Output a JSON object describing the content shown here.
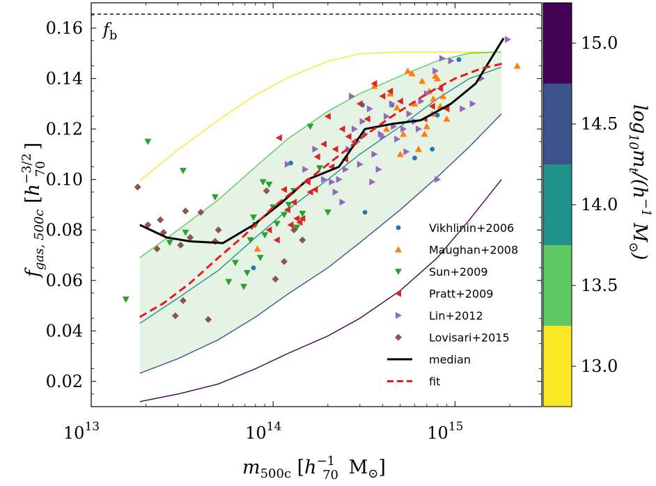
{
  "chart_data": {
    "type": "scatter",
    "x_scale": "log",
    "xlim": [
      10000000000000.0,
      3000000000000000.0
    ],
    "ylim": [
      0.01,
      0.17
    ],
    "x_ticks": [
      {
        "value": 10000000000000.0,
        "base": "10",
        "exp": "13"
      },
      {
        "value": 100000000000000.0,
        "base": "10",
        "exp": "14"
      },
      {
        "value": 1000000000000000.0,
        "base": "10",
        "exp": "15"
      }
    ],
    "y_ticks": [
      "0.02",
      "0.04",
      "0.06",
      "0.08",
      "0.10",
      "0.12",
      "0.14",
      "0.16"
    ],
    "xlabel": "m500c [h70−1 M⊙]",
    "ylabel": "fgas, 500c [h70−3/2]",
    "baryon_fraction": {
      "value": 0.1655,
      "label": "fb"
    },
    "colorbar": {
      "label": "log10 mt/(h−1 M⊙)",
      "ticks": [
        "13.0",
        "13.5",
        "14.0",
        "14.5",
        "15.0"
      ],
      "range": [
        12.75,
        15.25
      ],
      "bands": [
        {
          "from": 12.75,
          "to": 13.25,
          "color": "#fde725"
        },
        {
          "from": 13.25,
          "to": 13.75,
          "color": "#5ec962"
        },
        {
          "from": 13.75,
          "to": 14.25,
          "color": "#21918c"
        },
        {
          "from": 14.25,
          "to": 14.75,
          "color": "#3b528b"
        },
        {
          "from": 14.75,
          "to": 15.25,
          "color": "#440154"
        }
      ]
    },
    "model_curves": [
      {
        "mt": "13.0",
        "color": "#fde725",
        "x": [
          18500000000000.0,
          30000000000000.0,
          50000000000000.0,
          80000000000000.0,
          120000000000000.0,
          200000000000000.0,
          300000000000000.0,
          500000000000000.0,
          800000000000000.0,
          1200000000000000.0,
          1800000000000000.0
        ],
        "y": [
          0.0995,
          0.1118,
          0.1235,
          0.1335,
          0.1402,
          0.1468,
          0.1498,
          0.1505,
          0.1505,
          0.1505,
          0.1505
        ]
      },
      {
        "mt": "13.5",
        "color": "#5ec962",
        "x": [
          18500000000000.0,
          30000000000000.0,
          50000000000000.0,
          80000000000000.0,
          120000000000000.0,
          200000000000000.0,
          300000000000000.0,
          500000000000000.0,
          800000000000000.0,
          1200000000000000.0,
          1800000000000000.0
        ],
        "y": [
          0.069,
          0.08,
          0.092,
          0.105,
          0.116,
          0.127,
          0.134,
          0.141,
          0.147,
          0.15,
          0.1505
        ]
      },
      {
        "mt": "14.0",
        "color": "#21918c",
        "x": [
          18500000000000.0,
          30000000000000.0,
          50000000000000.0,
          80000000000000.0,
          120000000000000.0,
          200000000000000.0,
          300000000000000.0,
          500000000000000.0,
          800000000000000.0,
          1200000000000000.0,
          1800000000000000.0
        ],
        "y": [
          0.043,
          0.053,
          0.064,
          0.077,
          0.088,
          0.1,
          0.11,
          0.121,
          0.132,
          0.14,
          0.1445
        ]
      },
      {
        "mt": "14.5",
        "color": "#3b528b",
        "x": [
          18500000000000.0,
          30000000000000.0,
          50000000000000.0,
          80000000000000.0,
          120000000000000.0,
          200000000000000.0,
          300000000000000.0,
          500000000000000.0,
          800000000000000.0,
          1200000000000000.0,
          1800000000000000.0
        ],
        "y": [
          0.0232,
          0.029,
          0.0365,
          0.0455,
          0.0545,
          0.065,
          0.075,
          0.088,
          0.101,
          0.113,
          0.126
        ]
      },
      {
        "mt": "15.0",
        "color": "#440154",
        "x": [
          18500000000000.0,
          30000000000000.0,
          50000000000000.0,
          80000000000000.0,
          120000000000000.0,
          200000000000000.0,
          300000000000000.0,
          500000000000000.0,
          800000000000000.0,
          1200000000000000.0,
          1800000000000000.0
        ],
        "y": [
          0.012,
          0.015,
          0.019,
          0.025,
          0.031,
          0.038,
          0.045,
          0.056,
          0.069,
          0.084,
          0.1
        ]
      }
    ],
    "shaded_band": {
      "between": [
        "13.5",
        "14.5"
      ],
      "color": "#d7ecd7",
      "opacity": 0.65
    },
    "series": [
      {
        "name": "Vikhlinin+2006",
        "marker": "circle",
        "color": "#1f77b4",
        "x": [
          78000000000000.0,
          125000000000000.0,
          310000000000000.0,
          320000000000000.0,
          450000000000000.0,
          600000000000000.0,
          750000000000000.0,
          800000000000000.0,
          1050000000000000.0
        ],
        "y": [
          0.065,
          0.1065,
          0.1295,
          0.087,
          0.1295,
          0.1085,
          0.112,
          0.1255,
          0.1475
        ]
      },
      {
        "name": "Maughan+2008",
        "marker": "triangle-up",
        "color": "#ff7f0e",
        "x": [
          82000000000000.0,
          360000000000000.0,
          420000000000000.0,
          480000000000000.0,
          520000000000000.0,
          550000000000000.0,
          600000000000000.0,
          630000000000000.0,
          660000000000000.0,
          700000000000000.0,
          720000000000000.0,
          750000000000000.0,
          780000000000000.0,
          800000000000000.0,
          830000000000000.0,
          860000000000000.0,
          900000000000000.0,
          580000000000000.0,
          680000000000000.0,
          760000000000000.0,
          2200000000000000.0,
          440000000000000.0,
          500000000000000.0
        ],
        "y": [
          0.0725,
          0.137,
          0.12,
          0.1285,
          0.118,
          0.143,
          0.13,
          0.112,
          0.139,
          0.121,
          0.135,
          0.126,
          0.141,
          0.14,
          0.129,
          0.133,
          0.124,
          0.142,
          0.118,
          0.132,
          0.145,
          0.134,
          0.11
        ]
      },
      {
        "name": "Sun+2009",
        "marker": "triangle-down",
        "color": "#2ca02c",
        "x": [
          15500000000000.0,
          20500000000000.0,
          27000000000000.0,
          32000000000000.0,
          33000000000000.0,
          48000000000000.0,
          57000000000000.0,
          62000000000000.0,
          69000000000000.0,
          72000000000000.0,
          75000000000000.0,
          80000000000000.0,
          85000000000000.0,
          90000000000000.0,
          95000000000000.0,
          100000000000000.0,
          105000000000000.0,
          115000000000000.0,
          122000000000000.0,
          130000000000000.0,
          145000000000000.0,
          160000000000000.0,
          180000000000000.0,
          200000000000000.0,
          135000000000000.0,
          88000000000000.0,
          78000000000000.0
        ],
        "y": [
          0.0525,
          0.115,
          0.075,
          0.1035,
          0.079,
          0.093,
          0.0595,
          0.067,
          0.0575,
          0.063,
          0.076,
          0.082,
          0.069,
          0.078,
          0.098,
          0.089,
          0.0825,
          0.086,
          0.09,
          0.0955,
          0.0865,
          0.121,
          0.1045,
          0.087,
          0.081,
          0.099,
          0.085
        ]
      },
      {
        "name": "Pratt+2009",
        "marker": "triangle-left",
        "color": "#d62728",
        "x": [
          108000000000000.0,
          115000000000000.0,
          120000000000000.0,
          130000000000000.0,
          135000000000000.0,
          145000000000000.0,
          155000000000000.0,
          160000000000000.0,
          175000000000000.0,
          190000000000000.0,
          200000000000000.0,
          220000000000000.0,
          240000000000000.0,
          260000000000000.0,
          280000000000000.0,
          300000000000000.0,
          330000000000000.0,
          360000000000000.0,
          400000000000000.0,
          440000000000000.0,
          500000000000000.0,
          95000000000000.0,
          105000000000000.0,
          125000000000000.0,
          140000000000000.0,
          170000000000000.0,
          210000000000000.0,
          250000000000000.0,
          680000000000000.0,
          750000000000000.0,
          830000000000000.0,
          900000000000000.0
        ],
        "y": [
          0.1165,
          0.096,
          0.088,
          0.091,
          0.0845,
          0.0845,
          0.099,
          0.095,
          0.109,
          0.114,
          0.125,
          0.112,
          0.12,
          0.117,
          0.115,
          0.13,
          0.124,
          0.138,
          0.133,
          0.135,
          0.131,
          0.08,
          0.076,
          0.082,
          0.083,
          0.096,
          0.105,
          0.108,
          0.124,
          0.129,
          0.136,
          0.128
        ]
      },
      {
        "name": "Lin+2012",
        "marker": "triangle-right",
        "color": "#9467bd",
        "x": [
          120000000000000.0,
          150000000000000.0,
          170000000000000.0,
          190000000000000.0,
          210000000000000.0,
          230000000000000.0,
          250000000000000.0,
          260000000000000.0,
          270000000000000.0,
          280000000000000.0,
          290000000000000.0,
          300000000000000.0,
          320000000000000.0,
          340000000000000.0,
          360000000000000.0,
          380000000000000.0,
          400000000000000.0,
          420000000000000.0,
          450000000000000.0,
          480000000000000.0,
          520000000000000.0,
          560000000000000.0,
          600000000000000.0,
          650000000000000.0,
          700000000000000.0,
          780000000000000.0,
          850000000000000.0,
          950000000000000.0,
          1100000000000000.0,
          1250000000000000.0,
          1400000000000000.0,
          1950000000000000.0,
          220000000000000.0,
          240000000000000.0,
          310000000000000.0,
          350000000000000.0,
          390000000000000.0,
          460000000000000.0,
          540000000000000.0,
          630000000000000.0,
          800000000000000.0
        ],
        "y": [
          0.106,
          0.104,
          0.112,
          0.1,
          0.099,
          0.1,
          0.104,
          0.112,
          0.133,
          0.12,
          0.115,
          0.106,
          0.118,
          0.128,
          0.11,
          0.104,
          0.117,
          0.125,
          0.13,
          0.116,
          0.12,
          0.126,
          0.123,
          0.131,
          0.134,
          0.143,
          0.148,
          0.147,
          0.128,
          0.13,
          0.14,
          0.1555,
          0.095,
          0.091,
          0.123,
          0.099,
          0.118,
          0.121,
          0.111,
          0.12,
          0.1
        ]
      },
      {
        "name": "Lovisari+2015",
        "marker": "diamond",
        "color": "#8c564b",
        "x": [
          20500000000000.0,
          23000000000000.0,
          24000000000000.0,
          29000000000000.0,
          31000000000000.0,
          32000000000000.0,
          33000000000000.0,
          35000000000000.0,
          44000000000000.0,
          48000000000000.0,
          50000000000000.0,
          92000000000000.0,
          103000000000000.0,
          115000000000000.0,
          130000000000000.0,
          145000000000000.0,
          25000000000000.0,
          18000000000000.0,
          40000000000000.0
        ],
        "y": [
          0.082,
          0.0725,
          0.084,
          0.046,
          0.074,
          0.052,
          0.0875,
          0.077,
          0.0445,
          0.0755,
          0.08,
          0.0955,
          0.0605,
          0.0675,
          0.08,
          0.076,
          0.079,
          0.097,
          0.087
        ]
      }
    ],
    "lines": [
      {
        "name": "median",
        "color": "#000000",
        "style": "solid",
        "x": [
          18500000000000.0,
          26000000000000.0,
          35000000000000.0,
          53000000000000.0,
          78000000000000.0,
          110000000000000.0,
          155000000000000.0,
          230000000000000.0,
          320000000000000.0,
          450000000000000.0,
          650000000000000.0,
          950000000000000.0,
          1300000000000000.0,
          1850000000000000.0
        ],
        "y": [
          0.082,
          0.077,
          0.0755,
          0.0748,
          0.082,
          0.0905,
          0.1,
          0.105,
          0.12,
          0.122,
          0.1235,
          0.13,
          0.138,
          0.156
        ]
      },
      {
        "name": "fit",
        "color": "#e41a1c",
        "style": "dashed",
        "x": [
          18500000000000.0,
          25000000000000.0,
          35000000000000.0,
          50000000000000.0,
          70000000000000.0,
          100000000000000.0,
          150000000000000.0,
          200000000000000.0,
          300000000000000.0,
          450000000000000.0,
          700000000000000.0,
          1000000000000000.0,
          1400000000000000.0,
          1850000000000000.0
        ],
        "y": [
          0.0455,
          0.051,
          0.059,
          0.069,
          0.078,
          0.089,
          0.099,
          0.106,
          0.116,
          0.125,
          0.134,
          0.14,
          0.144,
          0.146
        ]
      }
    ],
    "legend": {
      "position": "lower-right",
      "entries": [
        "Vikhlinin+2006",
        "Maughan+2008",
        "Sun+2009",
        "Pratt+2009",
        "Lin+2012",
        "Lovisari+2015",
        "median",
        "fit"
      ]
    }
  }
}
